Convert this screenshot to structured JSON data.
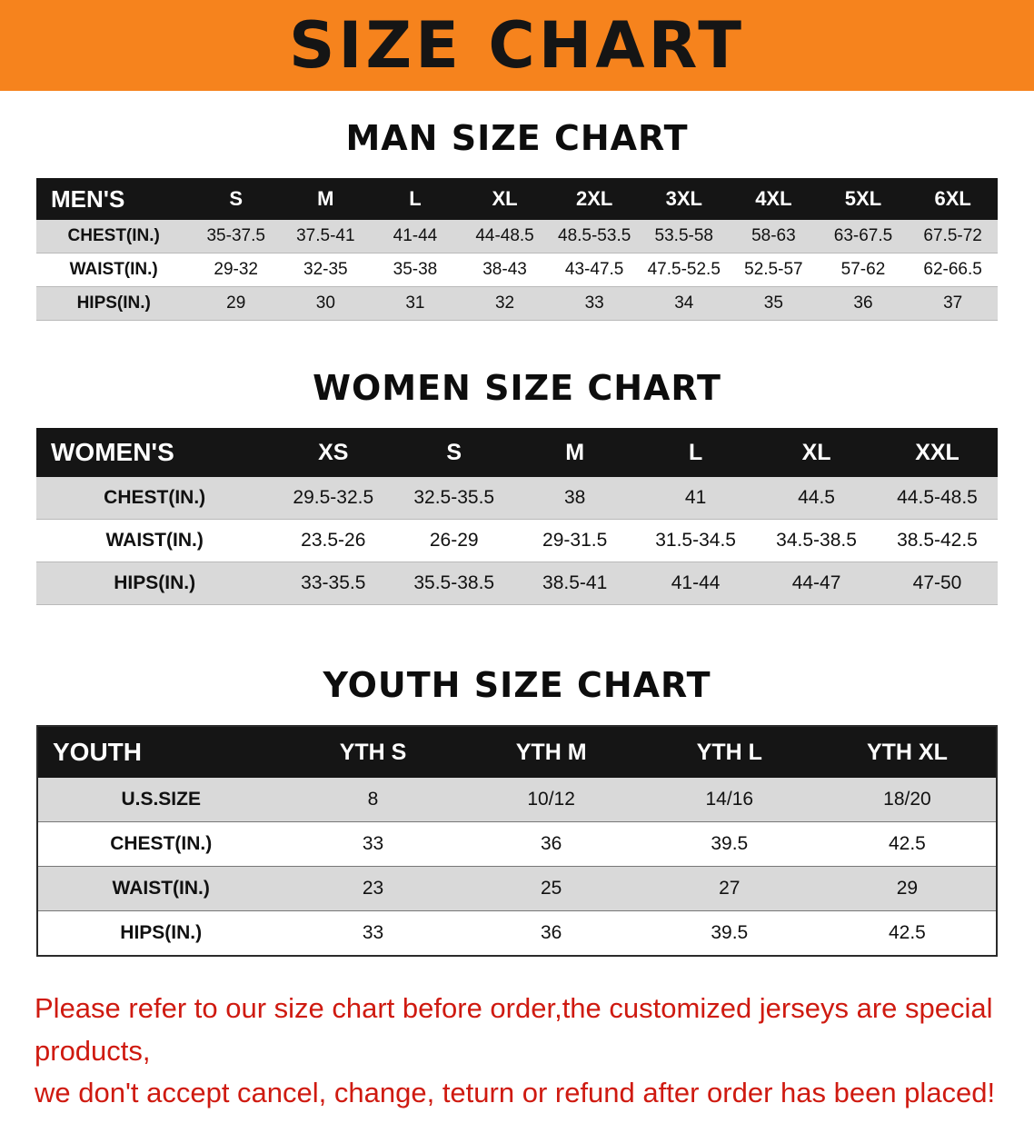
{
  "banner": {
    "title": "SIZE CHART"
  },
  "sections": [
    {
      "id": "men",
      "heading": "MAN SIZE CHART",
      "table": {
        "header": [
          "MEN'S",
          "S",
          "M",
          "L",
          "XL",
          "2XL",
          "3XL",
          "4XL",
          "5XL",
          "6XL"
        ],
        "rows": [
          [
            "CHEST(IN.)",
            "35-37.5",
            "37.5-41",
            "41-44",
            "44-48.5",
            "48.5-53.5",
            "53.5-58",
            "58-63",
            "63-67.5",
            "67.5-72"
          ],
          [
            "WAIST(IN.)",
            "29-32",
            "32-35",
            "35-38",
            "38-43",
            "43-47.5",
            "47.5-52.5",
            "52.5-57",
            "57-62",
            "62-66.5"
          ],
          [
            "HIPS(IN.)",
            "29",
            "30",
            "31",
            "32",
            "33",
            "34",
            "35",
            "36",
            "37"
          ]
        ]
      }
    },
    {
      "id": "women",
      "heading": "WOMEN SIZE CHART",
      "table": {
        "header": [
          "WOMEN'S",
          "XS",
          "S",
          "M",
          "L",
          "XL",
          "XXL"
        ],
        "rows": [
          [
            "CHEST(IN.)",
            "29.5-32.5",
            "32.5-35.5",
            "38",
            "41",
            "44.5",
            "44.5-48.5"
          ],
          [
            "WAIST(IN.)",
            "23.5-26",
            "26-29",
            "29-31.5",
            "31.5-34.5",
            "34.5-38.5",
            "38.5-42.5"
          ],
          [
            "HIPS(IN.)",
            "33-35.5",
            "35.5-38.5",
            "38.5-41",
            "41-44",
            "44-47",
            "47-50"
          ]
        ]
      }
    },
    {
      "id": "youth",
      "heading": "YOUTH SIZE CHART",
      "table": {
        "header": [
          "YOUTH",
          "YTH S",
          "YTH M",
          "YTH L",
          "YTH XL"
        ],
        "rows": [
          [
            "U.S.SIZE",
            "8",
            "10/12",
            "14/16",
            "18/20"
          ],
          [
            "CHEST(IN.)",
            "33",
            "36",
            "39.5",
            "42.5"
          ],
          [
            "WAIST(IN.)",
            "23",
            "25",
            "27",
            "29"
          ],
          [
            "HIPS(IN.)",
            "33",
            "36",
            "39.5",
            "42.5"
          ]
        ]
      }
    }
  ],
  "disclaimer": {
    "line1": "Please refer to our size chart before order,the customized jerseys are special products,",
    "line2": "we don't accept cancel, change, teturn or refund after order has been placed!"
  },
  "colors": {
    "banner_orange": "#f6831d",
    "table_header_black": "#151515",
    "row_gray": "#d9d9d9",
    "disclaimer_red": "#cf1a10"
  }
}
